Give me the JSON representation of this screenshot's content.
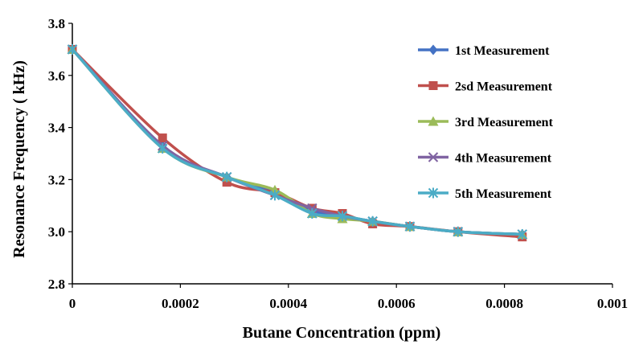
{
  "chart_data": {
    "type": "line",
    "title": "",
    "xlabel": "Butane Concentration (ppm)",
    "ylabel": "Resonance Frequency ( kHz)",
    "xlim": [
      0,
      0.001
    ],
    "ylim": [
      2.8,
      3.8
    ],
    "x_ticks": [
      "0",
      "0.0002",
      "0.0004",
      "0.0006",
      "0.0008",
      "0.001"
    ],
    "y_ticks": [
      "2.8",
      "3.0",
      "3.2",
      "3.4",
      "3.6",
      "3.8"
    ],
    "grid": false,
    "legend_position": "right",
    "series": [
      {
        "name": "1st Measurement",
        "color": "#4472C4",
        "marker": "diamond",
        "x": [
          0,
          0.000167,
          0.000286,
          0.000375,
          0.000444,
          0.0005,
          0.000556,
          0.000625,
          0.000714,
          0.000833
        ],
        "y": [
          3.7,
          3.33,
          3.21,
          3.15,
          3.08,
          3.06,
          3.04,
          3.02,
          3.0,
          2.99
        ]
      },
      {
        "name": "2sd Measurement",
        "color": "#C0504D",
        "marker": "square",
        "x": [
          0,
          0.000167,
          0.000286,
          0.000375,
          0.000444,
          0.0005,
          0.000556,
          0.000625,
          0.000714,
          0.000833
        ],
        "y": [
          3.7,
          3.36,
          3.19,
          3.15,
          3.09,
          3.07,
          3.03,
          3.02,
          3.0,
          2.98
        ]
      },
      {
        "name": "3rd Measurement",
        "color": "#9BBB59",
        "marker": "triangle",
        "x": [
          0,
          0.000167,
          0.000286,
          0.000375,
          0.000444,
          0.0005,
          0.000556,
          0.000625,
          0.000714,
          0.000833
        ],
        "y": [
          3.7,
          3.32,
          3.21,
          3.16,
          3.07,
          3.05,
          3.04,
          3.02,
          3.0,
          2.99
        ]
      },
      {
        "name": "4th Measurement",
        "color": "#8064A2",
        "marker": "x",
        "x": [
          0,
          0.000167,
          0.000286,
          0.000375,
          0.000444,
          0.0005,
          0.000556,
          0.000625,
          0.000714,
          0.000833
        ],
        "y": [
          3.7,
          3.33,
          3.21,
          3.14,
          3.09,
          3.06,
          3.04,
          3.02,
          3.0,
          2.99
        ]
      },
      {
        "name": "5th Measurement",
        "color": "#4BACC6",
        "marker": "asterisk",
        "x": [
          0,
          0.000167,
          0.000286,
          0.000375,
          0.000444,
          0.0005,
          0.000556,
          0.000625,
          0.000714,
          0.000833
        ],
        "y": [
          3.7,
          3.32,
          3.21,
          3.14,
          3.07,
          3.06,
          3.04,
          3.02,
          3.0,
          2.99
        ]
      }
    ]
  }
}
